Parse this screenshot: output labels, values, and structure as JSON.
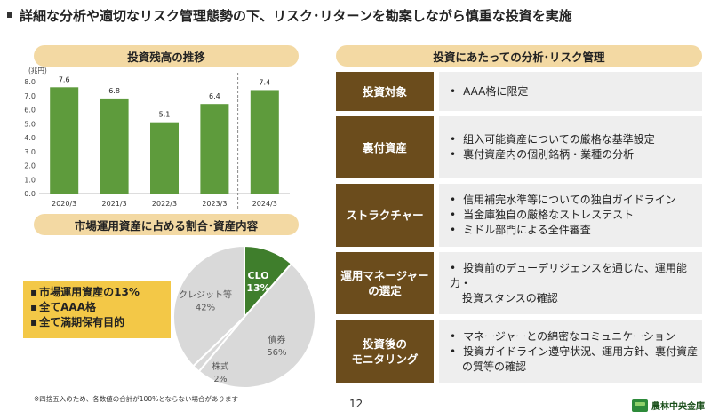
{
  "title": "詳細な分析や適切なリスク管理態勢の下、リスク･リターンを勘案しながら慎重な投資を実施",
  "headers": {
    "balance": "投資残高の推移",
    "ratio": "市場運用資産に占める割合･資産内容",
    "analysis": "投資にあたっての分析･リスク管理"
  },
  "chart_data": [
    {
      "type": "bar",
      "title": "投資残高の推移",
      "unit": "(兆円)",
      "categories": [
        "2020/3",
        "2021/3",
        "2022/3",
        "2023/3",
        "2024/3"
      ],
      "values": [
        7.6,
        6.8,
        5.1,
        6.4,
        7.4
      ],
      "value_labels": [
        "7.6",
        "6.8",
        "5.1",
        "6.4",
        "7.4"
      ],
      "ylim": [
        0,
        8
      ],
      "yticks": [
        "0.0",
        "1.0",
        "2.0",
        "3.0",
        "4.0",
        "5.0",
        "6.0",
        "7.0",
        "8.0"
      ],
      "color": "#5e9b3c",
      "grid": false
    },
    {
      "type": "pie",
      "slices": [
        {
          "label": "CLO",
          "pct_label": "13%",
          "value": 13,
          "color": "#3f7e2c"
        },
        {
          "label": "債券",
          "pct_label": "56%",
          "value": 56,
          "color": "#d9d9d9"
        },
        {
          "label": "株式",
          "pct_label": "2%",
          "value": 2,
          "color": "#d9d9d9"
        },
        {
          "label": "クレジット等",
          "pct_label": "42%",
          "value": 42,
          "color": "#d9d9d9"
        }
      ]
    }
  ],
  "callout": [
    "市場運用資産の13%",
    "全てAAA格",
    "全て満期保有目的"
  ],
  "footnote": "※四捨五入のため、各数値の合計が100%とならない場合があります",
  "page_number": "12",
  "logo_text": "農林中央金庫",
  "colors": {
    "accent": "#6b4c1c",
    "bar": "#5e9b3c",
    "header_bg": "#f3d9a3",
    "callout_bg": "#f3c847"
  },
  "analysis_rows": [
    {
      "label": [
        "投資対象"
      ],
      "items": [
        "AAA格に限定"
      ]
    },
    {
      "label": [
        "裏付資産"
      ],
      "items": [
        "組入可能資産についての厳格な基準設定",
        "裏付資産内の個別銘柄・業種の分析"
      ]
    },
    {
      "label": [
        "ストラクチャー"
      ],
      "items": [
        "信用補完水準等についての独自ガイドライン",
        "当金庫独自の厳格なストレステスト",
        "ミドル部門による全件審査"
      ]
    },
    {
      "label": [
        "運用マネージャー",
        "の選定"
      ],
      "items": [
        "投資前のデューデリジェンスを通じた、運用能力・",
        "投資スタンスの確認"
      ]
    },
    {
      "label": [
        "投資後の",
        "モニタリング"
      ],
      "items": [
        "マネージャーとの綿密なコミュニケーション",
        "投資ガイドライン遵守状況、運用方針、裏付資産",
        "の質等の確認"
      ]
    }
  ]
}
